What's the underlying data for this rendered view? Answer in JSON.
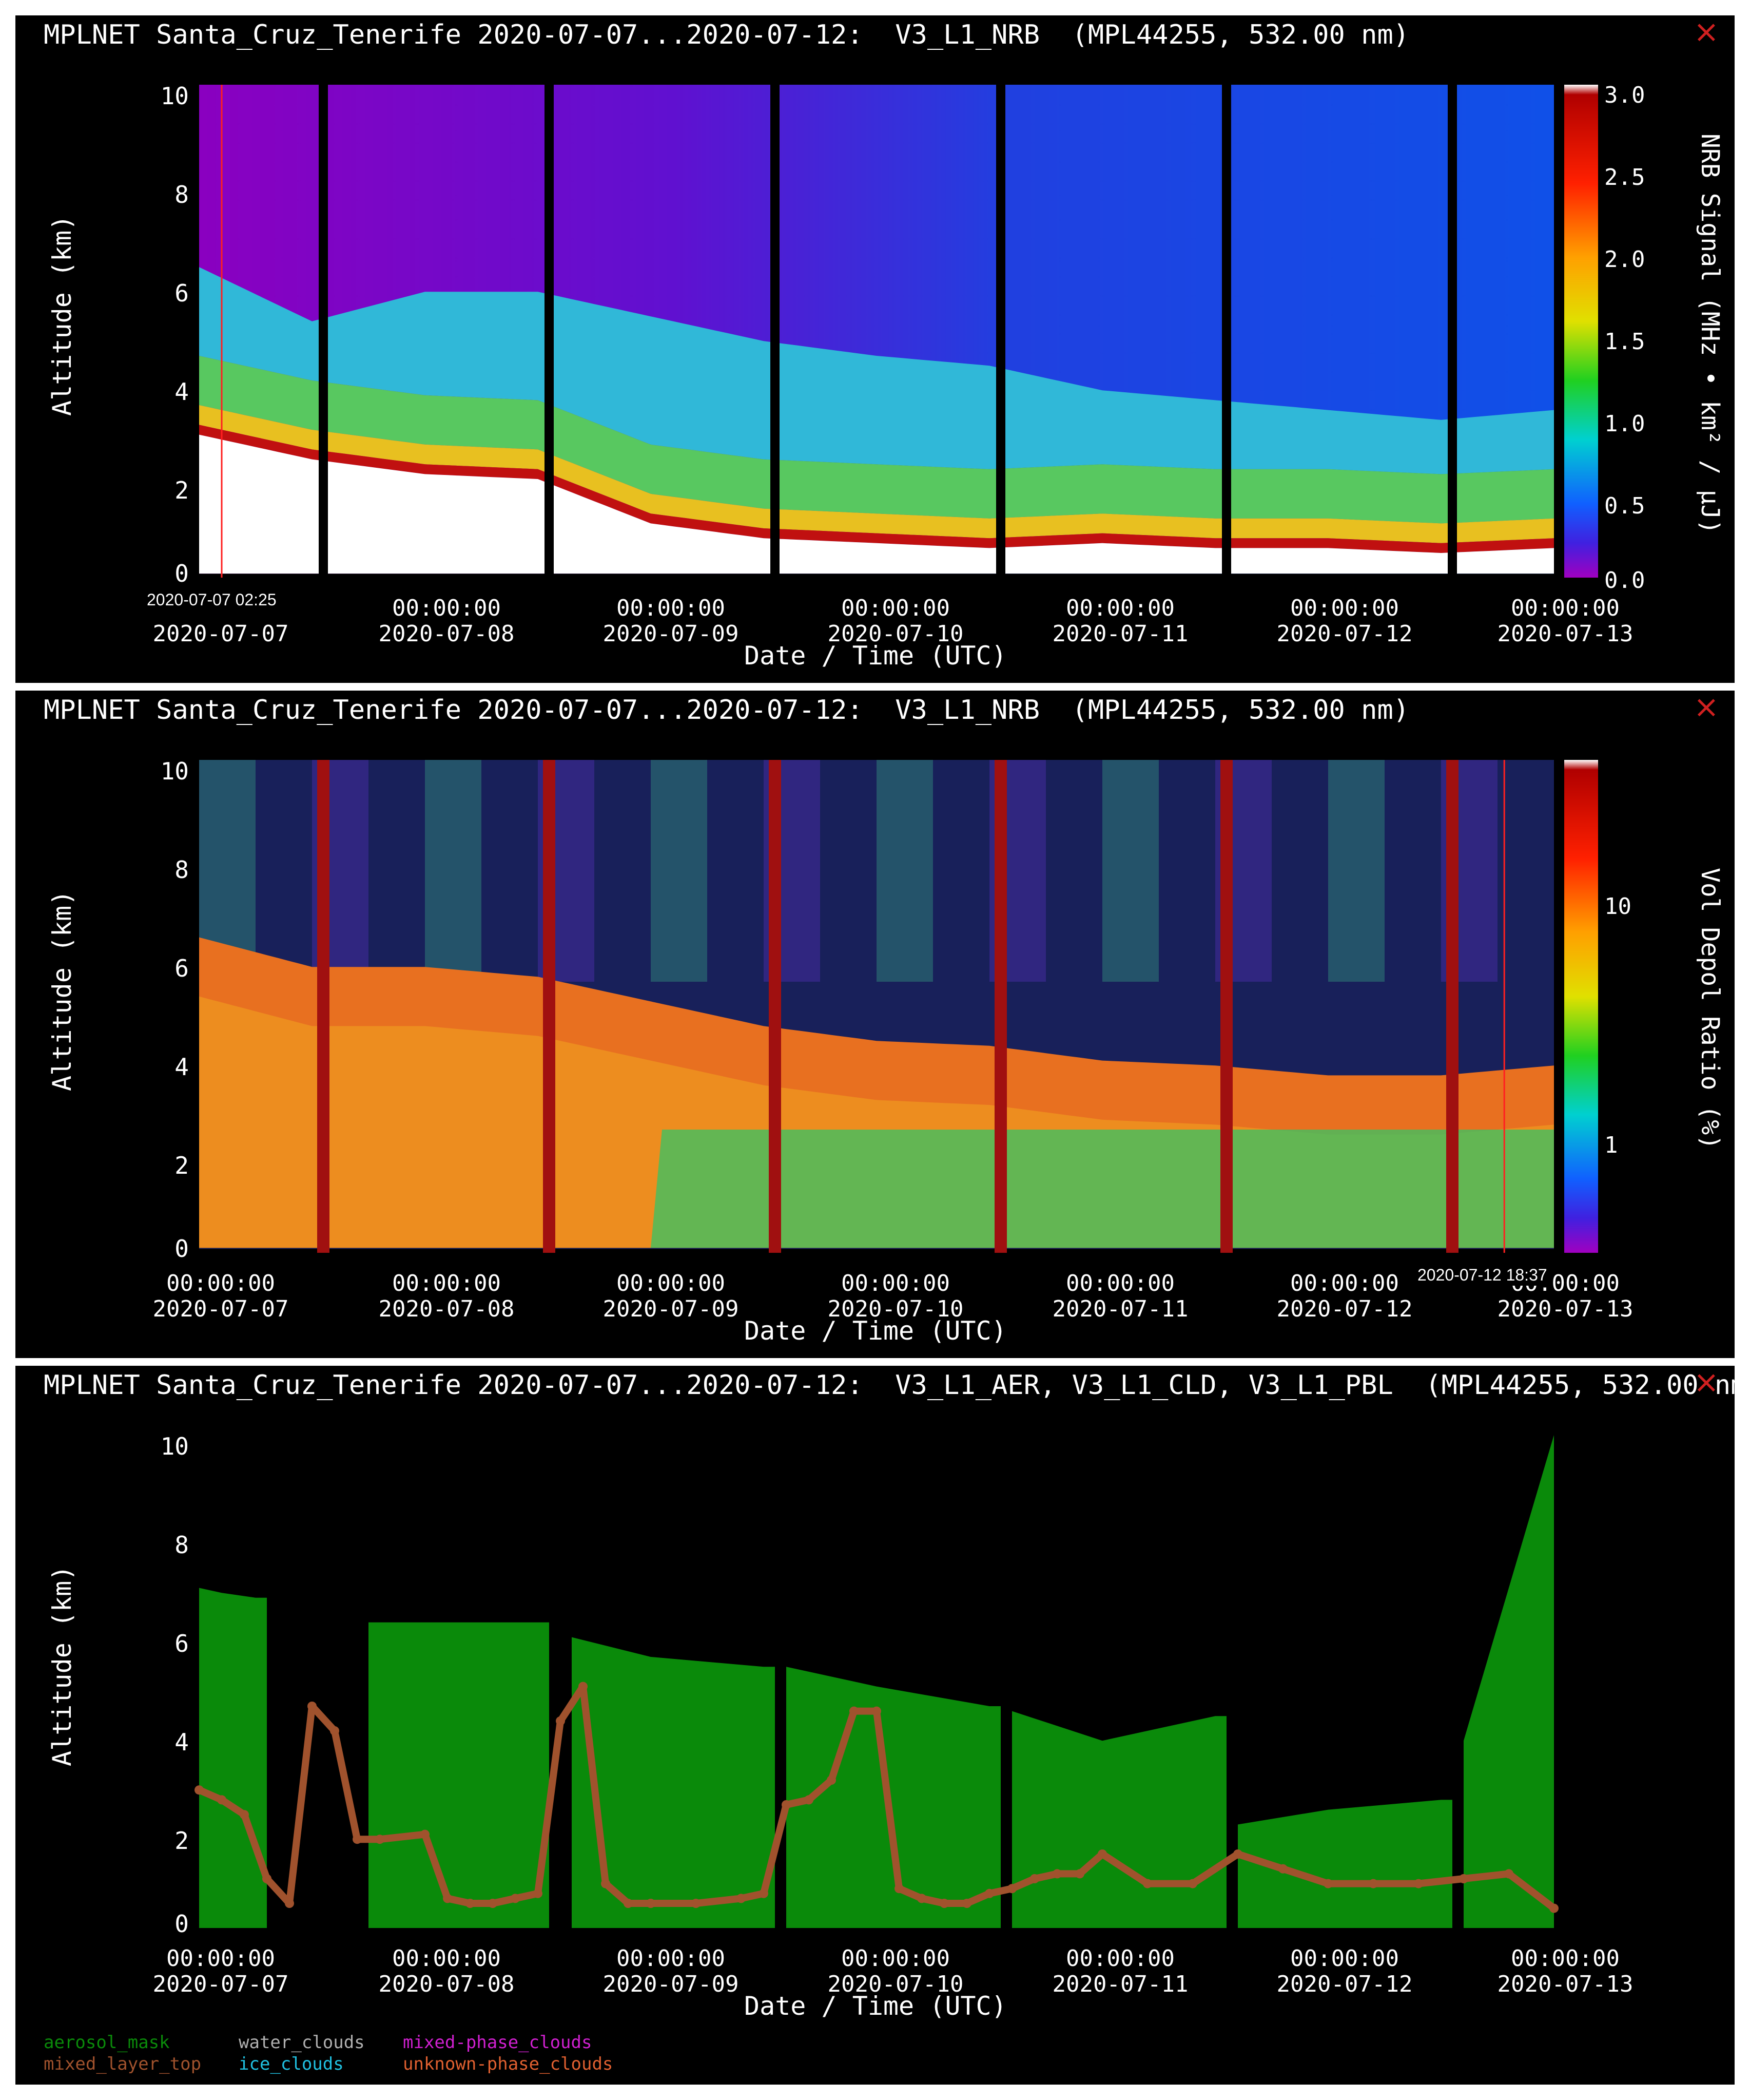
{
  "panels": [
    {
      "title": "MPLNET Santa_Cruz_Tenerife 2020-07-07...2020-07-12:  V3_L1_NRB  (MPL44255, 532.00 nm)",
      "ylabel": "Altitude (km)",
      "xlabel": "Date / Time (UTC)",
      "colorbar_label": "NRB Signal (MHz • km² / μJ)",
      "colorbar_ticks": [
        "3.0",
        "2.5",
        "2.0",
        "1.5",
        "1.0",
        "0.5",
        "0.0"
      ],
      "cursor_label": "2020-07-07 02:25",
      "xticks": [
        {
          "time": "",
          "date": "2020-07-07"
        },
        {
          "time": "00:00:00",
          "date": "2020-07-08"
        },
        {
          "time": "00:00:00",
          "date": "2020-07-09"
        },
        {
          "time": "00:00:00",
          "date": "2020-07-10"
        },
        {
          "time": "00:00:00",
          "date": "2020-07-11"
        },
        {
          "time": "00:00:00",
          "date": "2020-07-12"
        },
        {
          "time": "00:00:00",
          "date": "2020-07-13"
        }
      ]
    },
    {
      "title": "MPLNET Santa_Cruz_Tenerife 2020-07-07...2020-07-12:  V3_L1_NRB  (MPL44255, 532.00 nm)",
      "ylabel": "Altitude (km)",
      "xlabel": "Date / Time (UTC)",
      "colorbar_label": "Vol Depol Ratio (%)",
      "colorbar_ticks": [
        "10",
        "1"
      ],
      "cursor_label": "2020-07-12 18:37",
      "xticks": [
        {
          "time": "00:00:00",
          "date": "2020-07-07"
        },
        {
          "time": "00:00:00",
          "date": "2020-07-08"
        },
        {
          "time": "00:00:00",
          "date": "2020-07-09"
        },
        {
          "time": "00:00:00",
          "date": "2020-07-10"
        },
        {
          "time": "00:00:00",
          "date": "2020-07-11"
        },
        {
          "time": "00:00:00",
          "date": "2020-07-12"
        },
        {
          "time": "00:00:00",
          "date": "2020-07-13"
        }
      ]
    },
    {
      "title": "MPLNET Santa_Cruz_Tenerife 2020-07-07...2020-07-12:  V3_L1_AER, V3_L1_CLD, V3_L1_PBL  (MPL44255, 532.00 nm",
      "ylabel": "Altitude (km)",
      "xlabel": "Date / Time (UTC)",
      "xticks": [
        {
          "time": "00:00:00",
          "date": "2020-07-07"
        },
        {
          "time": "00:00:00",
          "date": "2020-07-08"
        },
        {
          "time": "00:00:00",
          "date": "2020-07-09"
        },
        {
          "time": "00:00:00",
          "date": "2020-07-10"
        },
        {
          "time": "00:00:00",
          "date": "2020-07-11"
        },
        {
          "time": "00:00:00",
          "date": "2020-07-12"
        },
        {
          "time": "00:00:00",
          "date": "2020-07-13"
        }
      ],
      "legend": [
        {
          "label": "aerosol_mask",
          "color": "#0a8a0a"
        },
        {
          "label": "water_clouds",
          "color": "#b0b0b0"
        },
        {
          "label": "mixed-phase_clouds",
          "color": "#d020d0"
        },
        {
          "label": "mixed_layer_top",
          "color": "#a0522d"
        },
        {
          "label": "ice_clouds",
          "color": "#20c0e0"
        },
        {
          "label": "unknown-phase_clouds",
          "color": "#e06030"
        }
      ]
    }
  ],
  "yticks": [
    "10",
    "8",
    "6",
    "4",
    "2",
    "0"
  ],
  "chart_data": [
    {
      "type": "heatmap",
      "title": "MPLNET Santa_Cruz_Tenerife 2020-07-07...2020-07-12:  V3_L1_NRB  (MPL44255, 532.00 nm)",
      "xlabel": "Date / Time (UTC)",
      "ylabel": "Altitude (km)",
      "xlim": [
        "2020-07-07 00:00",
        "2020-07-13 00:00"
      ],
      "ylim": [
        0,
        10
      ],
      "colorbar": {
        "label": "NRB Signal (MHz • km² / μJ)",
        "range": [
          0.0,
          3.0
        ],
        "colormap": "rainbow"
      },
      "data_gaps_days": [
        0.55,
        1.55,
        2.55,
        3.55,
        4.55,
        5.55
      ],
      "boundary_layer_top_km": [
        {
          "day": 0.0,
          "km": 2.9
        },
        {
          "day": 0.5,
          "km": 2.4
        },
        {
          "day": 1.0,
          "km": 2.1
        },
        {
          "day": 1.5,
          "km": 2.0
        },
        {
          "day": 2.0,
          "km": 1.1
        },
        {
          "day": 2.5,
          "km": 0.8
        },
        {
          "day": 3.0,
          "km": 0.7
        },
        {
          "day": 3.5,
          "km": 0.6
        },
        {
          "day": 4.0,
          "km": 0.7
        },
        {
          "day": 4.5,
          "km": 0.6
        },
        {
          "day": 5.0,
          "km": 0.6
        },
        {
          "day": 5.5,
          "km": 0.5
        },
        {
          "day": 6.0,
          "km": 0.6
        }
      ],
      "aerosol_top_km": [
        {
          "day": 0.0,
          "km": 6.3
        },
        {
          "day": 0.5,
          "km": 5.2
        },
        {
          "day": 1.0,
          "km": 5.8
        },
        {
          "day": 1.5,
          "km": 5.8
        },
        {
          "day": 2.0,
          "km": 5.3
        },
        {
          "day": 2.5,
          "km": 4.8
        },
        {
          "day": 3.0,
          "km": 4.5
        },
        {
          "day": 3.5,
          "km": 4.3
        },
        {
          "day": 4.0,
          "km": 3.8
        },
        {
          "day": 4.5,
          "km": 3.6
        },
        {
          "day": 5.0,
          "km": 3.4
        },
        {
          "day": 5.5,
          "km": 3.2
        },
        {
          "day": 6.0,
          "km": 3.4
        }
      ]
    },
    {
      "type": "heatmap",
      "title": "MPLNET Santa_Cruz_Tenerife 2020-07-07...2020-07-12:  V3_L1_NRB  (MPL44255, 532.00 nm)",
      "xlabel": "Date / Time (UTC)",
      "ylabel": "Altitude (km)",
      "xlim": [
        "2020-07-07 00:00",
        "2020-07-13 00:00"
      ],
      "ylim": [
        0,
        10
      ],
      "colorbar": {
        "label": "Vol Depol Ratio (%)",
        "scale": "log",
        "ticks": [
          1,
          10
        ],
        "colormap": "rainbow"
      },
      "data_gaps_days": [
        0.55,
        1.55,
        2.55,
        3.55,
        4.55,
        5.55
      ],
      "dust_layer_top_km": [
        {
          "day": 0.0,
          "km": 6.4
        },
        {
          "day": 0.5,
          "km": 5.8
        },
        {
          "day": 1.0,
          "km": 5.8
        },
        {
          "day": 1.5,
          "km": 5.6
        },
        {
          "day": 2.0,
          "km": 5.1
        },
        {
          "day": 2.5,
          "km": 4.6
        },
        {
          "day": 3.0,
          "km": 4.3
        },
        {
          "day": 3.5,
          "km": 4.2
        },
        {
          "day": 4.0,
          "km": 3.9
        },
        {
          "day": 4.5,
          "km": 3.8
        },
        {
          "day": 5.0,
          "km": 3.6
        },
        {
          "day": 5.5,
          "km": 3.6
        },
        {
          "day": 6.0,
          "km": 3.8
        }
      ]
    },
    {
      "type": "area",
      "title": "MPLNET Santa_Cruz_Tenerife 2020-07-07...2020-07-12:  V3_L1_AER, V3_L1_CLD, V3_L1_PBL  (MPL44255, 532.00 nm",
      "xlabel": "Date / Time (UTC)",
      "ylabel": "Altitude (km)",
      "xlim": [
        "2020-07-07 00:00",
        "2020-07-13 00:00"
      ],
      "ylim": [
        0,
        10
      ],
      "series": [
        {
          "name": "aerosol_mask",
          "x_days": [
            0.0,
            0.1,
            0.25,
            0.3,
            0.75,
            1.0,
            1.5,
            1.55,
            1.65,
            2.0,
            2.5,
            2.55,
            2.6,
            3.0,
            3.5,
            3.55,
            3.6,
            4.0,
            4.5,
            4.55,
            4.6,
            5.0,
            5.5,
            5.55,
            5.6,
            6.0
          ],
          "top_km": [
            6.9,
            6.8,
            6.7,
            0,
            6.2,
            6.2,
            6.2,
            0,
            5.9,
            5.5,
            5.3,
            0,
            5.3,
            4.9,
            4.5,
            0,
            4.4,
            3.8,
            4.3,
            0,
            2.1,
            2.4,
            2.6,
            0,
            3.8,
            10.0
          ]
        },
        {
          "name": "mixed_layer_top",
          "x_days": [
            0.0,
            0.1,
            0.2,
            0.3,
            0.4,
            0.5,
            0.6,
            0.7,
            0.8,
            1.0,
            1.1,
            1.2,
            1.3,
            1.4,
            1.5,
            1.6,
            1.7,
            1.8,
            1.9,
            2.0,
            2.2,
            2.4,
            2.5,
            2.6,
            2.7,
            2.8,
            2.9,
            3.0,
            3.1,
            3.2,
            3.3,
            3.4,
            3.5,
            3.6,
            3.7,
            3.8,
            3.9,
            4.0,
            4.2,
            4.4,
            4.6,
            4.8,
            5.0,
            5.2,
            5.4,
            5.6,
            5.8,
            6.0
          ],
          "values_km": [
            2.8,
            2.6,
            2.3,
            1.0,
            0.5,
            4.5,
            4.0,
            1.8,
            1.8,
            1.9,
            0.6,
            0.5,
            0.5,
            0.6,
            0.7,
            4.2,
            4.9,
            0.9,
            0.5,
            0.5,
            0.5,
            0.6,
            0.7,
            2.5,
            2.6,
            3.0,
            4.4,
            4.4,
            0.8,
            0.6,
            0.5,
            0.5,
            0.7,
            0.8,
            1.0,
            1.1,
            1.1,
            1.5,
            0.9,
            0.9,
            1.5,
            1.2,
            0.9,
            0.9,
            0.9,
            1.0,
            1.1,
            0.4
          ]
        }
      ]
    }
  ]
}
